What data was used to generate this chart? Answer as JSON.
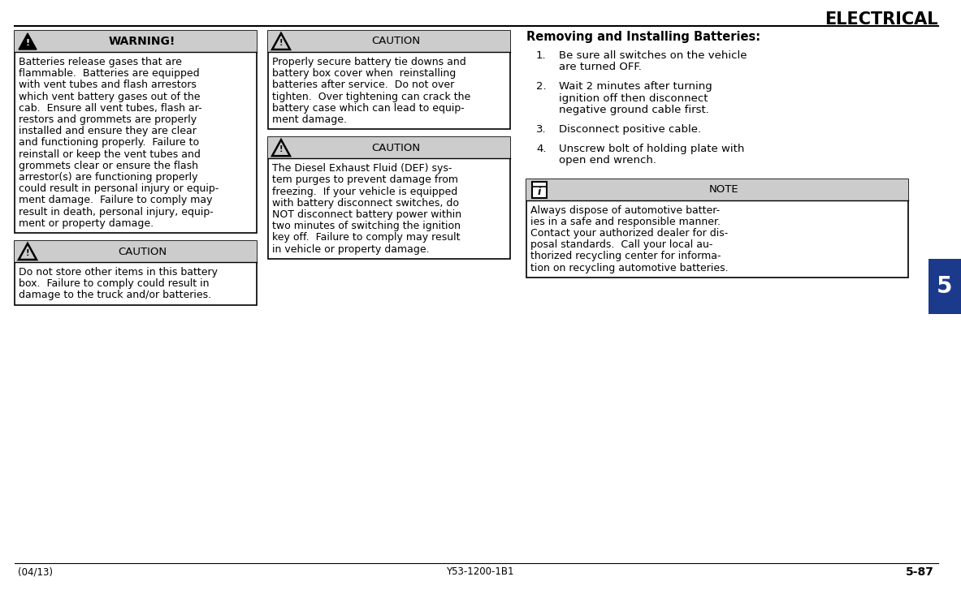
{
  "title": "ELECTRICAL",
  "page_bg": "#ffffff",
  "box_header_bg": "#cccccc",
  "box_border": "#000000",
  "tab_bg": "#1c3a8c",
  "tab_text": "#ffffff",
  "warning_header": "WARNING!",
  "warning_body_lines": [
    "Batteries release gases that are",
    "flammable.  Batteries are equipped",
    "with vent tubes and flash arrestors",
    "which vent battery gases out of the",
    "cab.  Ensure all vent tubes, flash ar-",
    "restors and grommets are properly",
    "installed and ensure they are clear",
    "and functioning properly.  Failure to",
    "reinstall or keep the vent tubes and",
    "grommets clear or ensure the flash",
    "arrestor(s) are functioning properly",
    "could result in personal injury or equip-",
    "ment damage.  Failure to comply may",
    "result in death, personal injury, equip-",
    "ment or property damage."
  ],
  "caution1_header": "CAUTION",
  "caution1_body_lines": [
    "Do not store other items in this battery",
    "box.  Failure to comply could result in",
    "damage to the truck and/or batteries."
  ],
  "caution2_header": "CAUTION",
  "caution2_body_lines": [
    "Properly secure battery tie downs and",
    "battery box cover when  reinstalling",
    "batteries after service.  Do not over",
    "tighten.  Over tightening can crack the",
    "battery case which can lead to equip-",
    "ment damage."
  ],
  "caution3_header": "CAUTION",
  "caution3_body_lines": [
    "The Diesel Exhaust Fluid (DEF) sys-",
    "tem purges to prevent damage from",
    "freezing.  If your vehicle is equipped",
    "with battery disconnect switches, do",
    "NOT disconnect battery power within",
    "two minutes of switching the ignition",
    "key off.  Failure to comply may result",
    "in vehicle or property damage."
  ],
  "note_header": "NOTE",
  "note_body_lines": [
    "Always dispose of automotive batter-",
    "ies in a safe and responsible manner.",
    "Contact your authorized dealer for dis-",
    "posal standards.  Call your local au-",
    "thorized recycling center for informa-",
    "tion on recycling automotive batteries."
  ],
  "section_title": "Removing and Installing Batteries:",
  "steps": [
    [
      "Be sure all switches on the vehicle",
      "are turned OFF."
    ],
    [
      "Wait 2 minutes after turning",
      "ignition off then disconnect",
      "negative ground cable first."
    ],
    [
      "Disconnect positive cable."
    ],
    [
      "Unscrew bolt of holding plate with",
      "open end wrench."
    ]
  ],
  "footer_left": "(04/13)",
  "footer_center": "Y53-1200-1B1",
  "footer_right": "5-87",
  "tab_number": "5"
}
